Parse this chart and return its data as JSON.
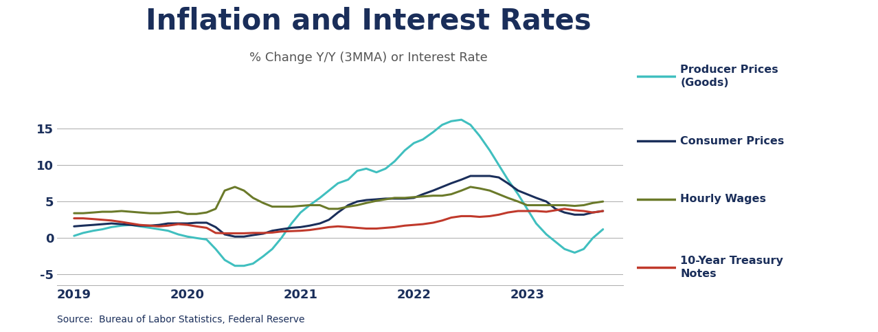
{
  "title": "Inflation and Interest Rates",
  "subtitle": "% Change Y/Y (3MMA) or Interest Rate",
  "source": "Source:  Bureau of Labor Statistics, Federal Reserve",
  "title_color": "#1a2e5a",
  "subtitle_color": "#555555",
  "source_color": "#1a2e5a",
  "background_color": "#ffffff",
  "lines": {
    "producer_prices": {
      "label": "Producer Prices\n(Goods)",
      "color": "#40bfbf",
      "linewidth": 2.2,
      "x": [
        2019.0,
        2019.08,
        2019.17,
        2019.25,
        2019.33,
        2019.42,
        2019.5,
        2019.58,
        2019.67,
        2019.75,
        2019.83,
        2019.92,
        2020.0,
        2020.08,
        2020.17,
        2020.25,
        2020.33,
        2020.42,
        2020.5,
        2020.58,
        2020.67,
        2020.75,
        2020.83,
        2020.92,
        2021.0,
        2021.08,
        2021.17,
        2021.25,
        2021.33,
        2021.42,
        2021.5,
        2021.58,
        2021.67,
        2021.75,
        2021.83,
        2021.92,
        2022.0,
        2022.08,
        2022.17,
        2022.25,
        2022.33,
        2022.42,
        2022.5,
        2022.58,
        2022.67,
        2022.75,
        2022.83,
        2022.92,
        2023.0,
        2023.08,
        2023.17,
        2023.25,
        2023.33,
        2023.42,
        2023.5,
        2023.58,
        2023.67
      ],
      "y": [
        0.3,
        0.7,
        1.0,
        1.2,
        1.5,
        1.7,
        1.8,
        1.6,
        1.4,
        1.2,
        1.0,
        0.5,
        0.2,
        0.0,
        -0.2,
        -1.5,
        -3.0,
        -3.8,
        -3.8,
        -3.5,
        -2.5,
        -1.5,
        0.0,
        2.0,
        3.5,
        4.5,
        5.5,
        6.5,
        7.5,
        8.0,
        9.2,
        9.5,
        9.0,
        9.5,
        10.5,
        12.0,
        13.0,
        13.5,
        14.5,
        15.5,
        16.0,
        16.2,
        15.5,
        14.0,
        12.0,
        10.0,
        8.0,
        6.0,
        4.0,
        2.0,
        0.5,
        -0.5,
        -1.5,
        -2.0,
        -1.5,
        0.0,
        1.2
      ]
    },
    "consumer_prices": {
      "label": "Consumer Prices",
      "color": "#1a2e5a",
      "linewidth": 2.2,
      "x": [
        2019.0,
        2019.08,
        2019.17,
        2019.25,
        2019.33,
        2019.42,
        2019.5,
        2019.58,
        2019.67,
        2019.75,
        2019.83,
        2019.92,
        2020.0,
        2020.08,
        2020.17,
        2020.25,
        2020.33,
        2020.42,
        2020.5,
        2020.58,
        2020.67,
        2020.75,
        2020.83,
        2020.92,
        2021.0,
        2021.08,
        2021.17,
        2021.25,
        2021.33,
        2021.42,
        2021.5,
        2021.58,
        2021.67,
        2021.75,
        2021.83,
        2021.92,
        2022.0,
        2022.08,
        2022.17,
        2022.25,
        2022.33,
        2022.42,
        2022.5,
        2022.58,
        2022.67,
        2022.75,
        2022.83,
        2022.92,
        2023.0,
        2023.08,
        2023.17,
        2023.25,
        2023.33,
        2023.42,
        2023.5,
        2023.58,
        2023.67
      ],
      "y": [
        1.6,
        1.7,
        1.8,
        1.9,
        2.0,
        1.9,
        1.8,
        1.7,
        1.7,
        1.8,
        2.0,
        2.0,
        2.0,
        2.1,
        2.1,
        1.5,
        0.5,
        0.2,
        0.2,
        0.4,
        0.6,
        1.0,
        1.2,
        1.4,
        1.5,
        1.7,
        2.0,
        2.5,
        3.5,
        4.5,
        5.0,
        5.2,
        5.3,
        5.4,
        5.4,
        5.4,
        5.5,
        6.0,
        6.5,
        7.0,
        7.5,
        8.0,
        8.5,
        8.5,
        8.5,
        8.3,
        7.5,
        6.5,
        6.0,
        5.5,
        5.0,
        4.0,
        3.5,
        3.2,
        3.2,
        3.5,
        3.7
      ]
    },
    "hourly_wages": {
      "label": "Hourly Wages",
      "color": "#6b7a2a",
      "linewidth": 2.2,
      "x": [
        2019.0,
        2019.08,
        2019.17,
        2019.25,
        2019.33,
        2019.42,
        2019.5,
        2019.58,
        2019.67,
        2019.75,
        2019.83,
        2019.92,
        2020.0,
        2020.08,
        2020.17,
        2020.25,
        2020.33,
        2020.42,
        2020.5,
        2020.58,
        2020.67,
        2020.75,
        2020.83,
        2020.92,
        2021.0,
        2021.08,
        2021.17,
        2021.25,
        2021.33,
        2021.42,
        2021.5,
        2021.58,
        2021.67,
        2021.75,
        2021.83,
        2021.92,
        2022.0,
        2022.08,
        2022.17,
        2022.25,
        2022.33,
        2022.42,
        2022.5,
        2022.58,
        2022.67,
        2022.75,
        2022.83,
        2022.92,
        2023.0,
        2023.08,
        2023.17,
        2023.25,
        2023.33,
        2023.42,
        2023.5,
        2023.58,
        2023.67
      ],
      "y": [
        3.4,
        3.4,
        3.5,
        3.6,
        3.6,
        3.7,
        3.6,
        3.5,
        3.4,
        3.4,
        3.5,
        3.6,
        3.3,
        3.3,
        3.5,
        4.0,
        6.5,
        7.0,
        6.5,
        5.5,
        4.8,
        4.3,
        4.3,
        4.3,
        4.4,
        4.5,
        4.5,
        4.0,
        4.0,
        4.3,
        4.5,
        4.8,
        5.1,
        5.3,
        5.5,
        5.5,
        5.6,
        5.7,
        5.8,
        5.8,
        6.0,
        6.5,
        7.0,
        6.8,
        6.5,
        6.0,
        5.5,
        5.0,
        4.5,
        4.5,
        4.5,
        4.5,
        4.5,
        4.4,
        4.5,
        4.8,
        5.0
      ]
    },
    "treasury": {
      "label": "10-Year Treasury\nNotes",
      "color": "#c0392b",
      "linewidth": 2.2,
      "x": [
        2019.0,
        2019.08,
        2019.17,
        2019.25,
        2019.33,
        2019.42,
        2019.5,
        2019.58,
        2019.67,
        2019.75,
        2019.83,
        2019.92,
        2020.0,
        2020.08,
        2020.17,
        2020.25,
        2020.33,
        2020.42,
        2020.5,
        2020.58,
        2020.67,
        2020.75,
        2020.83,
        2020.92,
        2021.0,
        2021.08,
        2021.17,
        2021.25,
        2021.33,
        2021.42,
        2021.5,
        2021.58,
        2021.67,
        2021.75,
        2021.83,
        2021.92,
        2022.0,
        2022.08,
        2022.17,
        2022.25,
        2022.33,
        2022.42,
        2022.5,
        2022.58,
        2022.67,
        2022.75,
        2022.83,
        2022.92,
        2023.0,
        2023.08,
        2023.17,
        2023.25,
        2023.33,
        2023.42,
        2023.5,
        2023.58,
        2023.67
      ],
      "y": [
        2.7,
        2.7,
        2.6,
        2.5,
        2.4,
        2.2,
        2.0,
        1.8,
        1.7,
        1.6,
        1.7,
        1.9,
        1.8,
        1.6,
        1.4,
        0.7,
        0.65,
        0.65,
        0.65,
        0.7,
        0.7,
        0.75,
        0.9,
        0.95,
        1.0,
        1.1,
        1.3,
        1.5,
        1.6,
        1.5,
        1.4,
        1.3,
        1.3,
        1.4,
        1.5,
        1.7,
        1.8,
        1.9,
        2.1,
        2.4,
        2.8,
        3.0,
        3.0,
        2.9,
        3.0,
        3.2,
        3.5,
        3.7,
        3.7,
        3.7,
        3.6,
        3.8,
        4.0,
        3.8,
        3.7,
        3.5,
        3.7
      ]
    }
  },
  "ylim": [
    -6.5,
    18.5
  ],
  "yticks": [
    -5,
    0,
    5,
    10,
    15
  ],
  "xlim": [
    2018.85,
    2023.85
  ],
  "xticks": [
    2019,
    2020,
    2021,
    2022,
    2023
  ],
  "grid_color": "#aaaaaa",
  "tick_color": "#1a2e5a",
  "legend_text_color": "#1a2e5a",
  "legend_fontsize": 11.5,
  "title_fontsize": 30,
  "subtitle_fontsize": 13,
  "source_fontsize": 10
}
